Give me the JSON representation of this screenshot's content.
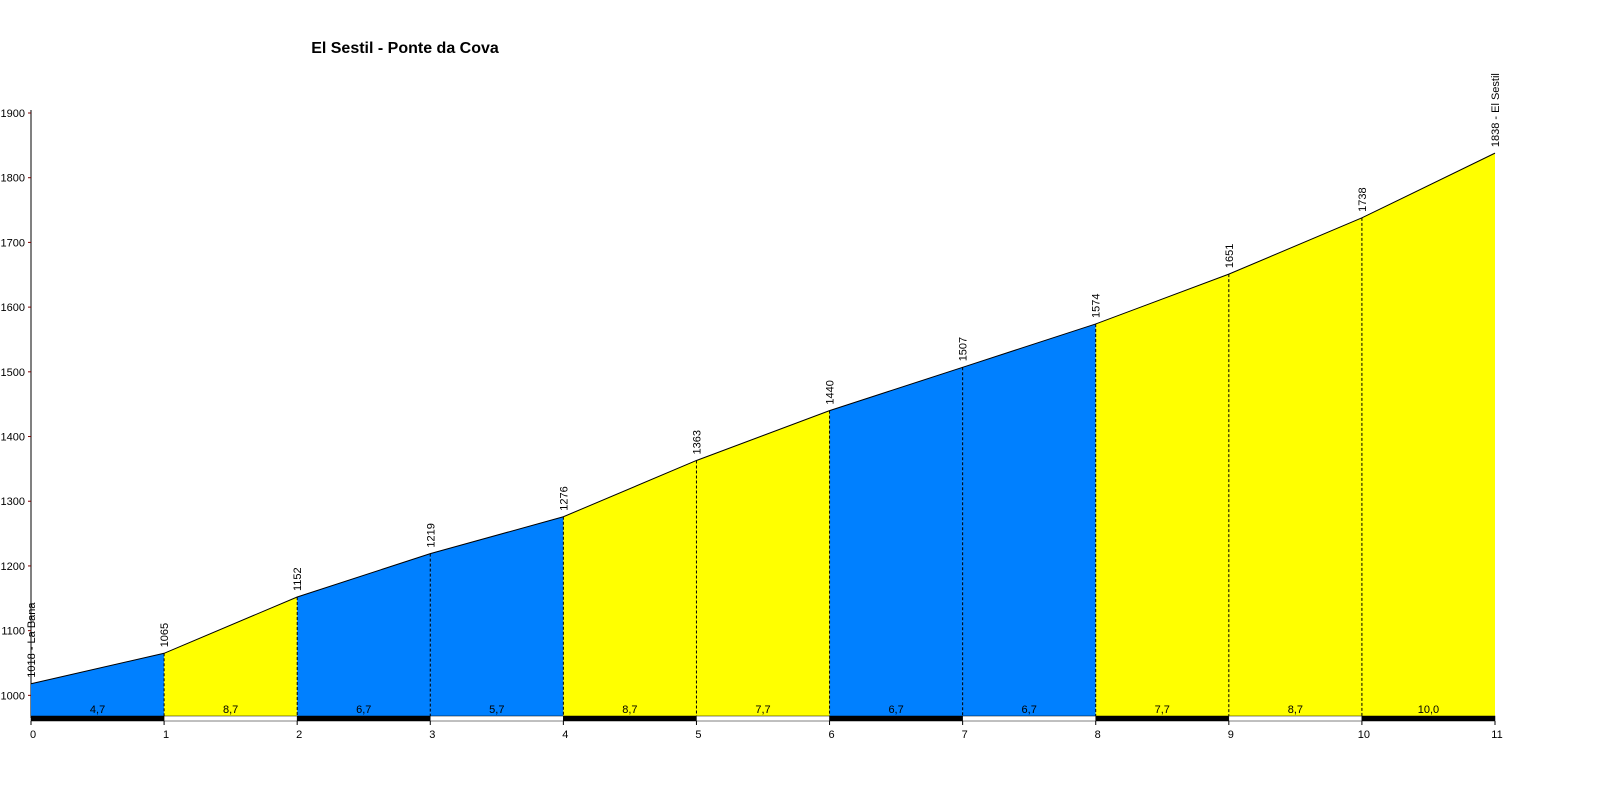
{
  "chart_data": {
    "type": "elevation-profile",
    "title": "El Sestil - Ponte da Cova",
    "x": [
      0,
      1,
      2,
      3,
      4,
      5,
      6,
      7,
      8,
      9,
      10,
      11
    ],
    "values": [
      1018,
      1065,
      1152,
      1219,
      1276,
      1363,
      1440,
      1507,
      1574,
      1651,
      1738,
      1838
    ],
    "value_labels": [
      "1018 - La Bana",
      "1065",
      "1152",
      "1219",
      "1276",
      "1363",
      "1440",
      "1507",
      "1574",
      "1651",
      "1738",
      "1838 - El Sestil"
    ],
    "segments": {
      "values": [
        4.7,
        8.7,
        6.7,
        5.7,
        8.7,
        7.7,
        6.7,
        6.7,
        7.7,
        8.7,
        10.0
      ],
      "value_labels": [
        "4,7",
        "8,7",
        "6,7",
        "5,7",
        "8,7",
        "7,7",
        "6,7",
        "6,7",
        "7,7",
        "8,7",
        "10,0"
      ],
      "colors": [
        "#0080ff",
        "#ffff00",
        "#0080ff",
        "#0080ff",
        "#ffff00",
        "#ffff00",
        "#0080ff",
        "#0080ff",
        "#ffff00",
        "#ffff00",
        "#ffff00"
      ]
    },
    "xlim": [
      0,
      11
    ],
    "xticks": [
      0,
      1,
      2,
      3,
      4,
      5,
      6,
      7,
      8,
      9,
      10,
      11
    ],
    "ylim": [
      965,
      1900
    ],
    "yticks": [
      1000,
      1100,
      1200,
      1300,
      1400,
      1500,
      1600,
      1700,
      1800,
      1900
    ]
  }
}
